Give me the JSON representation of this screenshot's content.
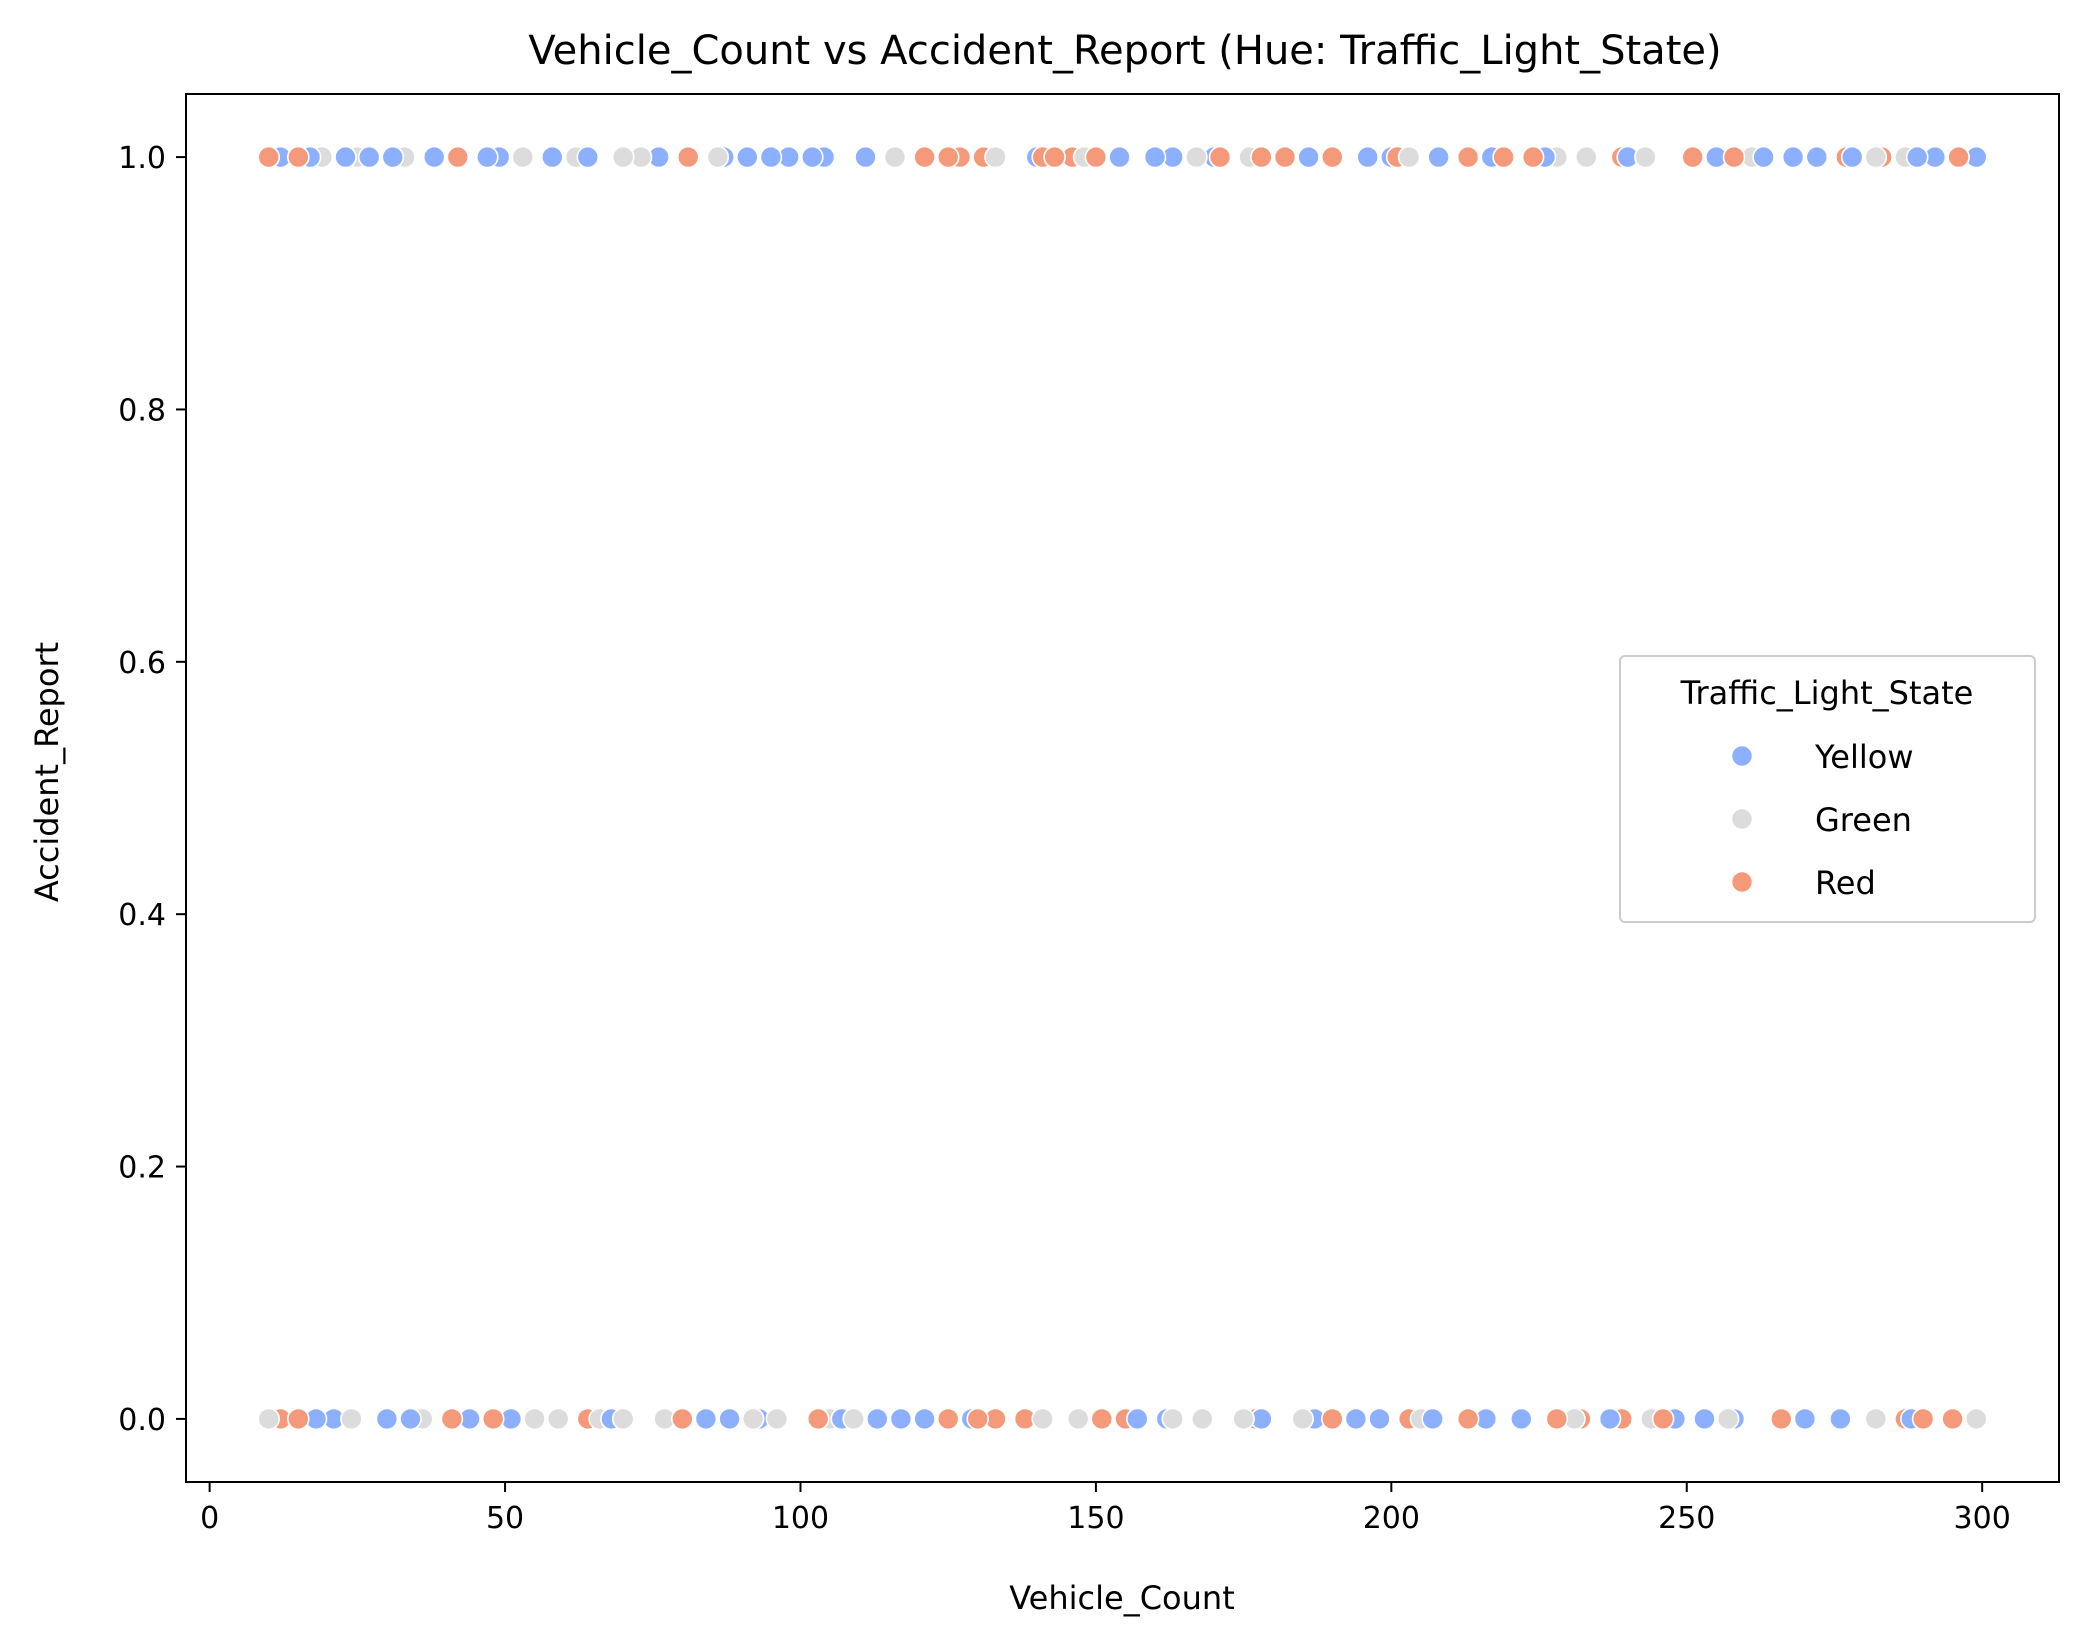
{
  "chart_data": {
    "type": "scatter",
    "title": "Vehicle_Count vs Accident_Report (Hue: Traffic_Light_State)",
    "xlabel": "Vehicle_Count",
    "ylabel": "Accident_Report",
    "xlim": [
      -4,
      313
    ],
    "ylim": [
      -0.05,
      1.05
    ],
    "xticks": [
      0,
      50,
      100,
      150,
      200,
      250,
      300
    ],
    "xtick_labels": [
      "0",
      "50",
      "100",
      "150",
      "200",
      "250",
      "300"
    ],
    "yticks": [
      0.0,
      0.2,
      0.4,
      0.6,
      0.8,
      1.0
    ],
    "ytick_labels": [
      "0.0",
      "0.2",
      "0.4",
      "0.6",
      "0.8",
      "1.0"
    ],
    "grid": false,
    "legend": {
      "title": "Traffic_Light_State",
      "placement": "center-right"
    },
    "series": [
      {
        "name": "Yellow",
        "color": "#8db0fe",
        "x": [
          12,
          17,
          23,
          27,
          31,
          38,
          47,
          49,
          58,
          64,
          76,
          87,
          91,
          95,
          98,
          102,
          104,
          111,
          126,
          140,
          154,
          160,
          163,
          170,
          186,
          196,
          200,
          208,
          217,
          226,
          240,
          255,
          263,
          268,
          272,
          278,
          289,
          292,
          299,
          11,
          18,
          21,
          30,
          34,
          44,
          51,
          68,
          84,
          88,
          93,
          107,
          113,
          117,
          121,
          129,
          157,
          162,
          178,
          187,
          194,
          198,
          207,
          216,
          222,
          237,
          248,
          253,
          258,
          270,
          276,
          282,
          288
        ],
        "y": [
          1,
          1,
          1,
          1,
          1,
          1,
          1,
          1,
          1,
          1,
          1,
          1,
          1,
          1,
          1,
          1,
          1,
          1,
          1,
          1,
          1,
          1,
          1,
          1,
          1,
          1,
          1,
          1,
          1,
          1,
          1,
          1,
          1,
          1,
          1,
          1,
          1,
          1,
          1,
          0,
          0,
          0,
          0,
          0,
          0,
          0,
          0,
          0,
          0,
          0,
          0,
          0,
          0,
          0,
          0,
          0,
          0,
          0,
          0,
          0,
          0,
          0,
          0,
          0,
          0,
          0,
          0,
          0,
          0,
          0,
          0,
          0
        ]
      },
      {
        "name": "Green",
        "color": "#dddcdc",
        "x": [
          19,
          25,
          33,
          53,
          62,
          70,
          73,
          86,
          116,
          133,
          148,
          167,
          176,
          203,
          228,
          233,
          243,
          261,
          282,
          287,
          10,
          24,
          36,
          55,
          59,
          66,
          70,
          77,
          92,
          96,
          105,
          109,
          141,
          147,
          163,
          168,
          175,
          185,
          205,
          231,
          244,
          257,
          266,
          282,
          299
        ],
        "y": [
          1,
          1,
          1,
          1,
          1,
          1,
          1,
          1,
          1,
          1,
          1,
          1,
          1,
          1,
          1,
          1,
          1,
          1,
          1,
          1,
          0,
          0,
          0,
          0,
          0,
          0,
          0,
          0,
          0,
          0,
          0,
          0,
          0,
          0,
          0,
          0,
          0,
          0,
          0,
          0,
          0,
          0,
          0,
          0,
          0
        ]
      },
      {
        "name": "Red",
        "color": "#f49a7b",
        "x": [
          10,
          15,
          42,
          81,
          121,
          125,
          127,
          131,
          141,
          143,
          146,
          150,
          171,
          178,
          182,
          190,
          201,
          213,
          219,
          224,
          239,
          251,
          258,
          277,
          283,
          296,
          12,
          15,
          41,
          48,
          64,
          80,
          103,
          125,
          130,
          133,
          138,
          151,
          155,
          177,
          190,
          203,
          213,
          228,
          232,
          239,
          246,
          266,
          287,
          290,
          295
        ],
        "y": [
          1,
          1,
          1,
          1,
          1,
          1,
          1,
          1,
          1,
          1,
          1,
          1,
          1,
          1,
          1,
          1,
          1,
          1,
          1,
          1,
          1,
          1,
          1,
          1,
          1,
          1,
          0,
          0,
          0,
          0,
          0,
          0,
          0,
          0,
          0,
          0,
          0,
          0,
          0,
          0,
          0,
          0,
          0,
          0,
          0,
          0,
          0,
          0,
          0,
          0,
          0
        ]
      }
    ]
  }
}
